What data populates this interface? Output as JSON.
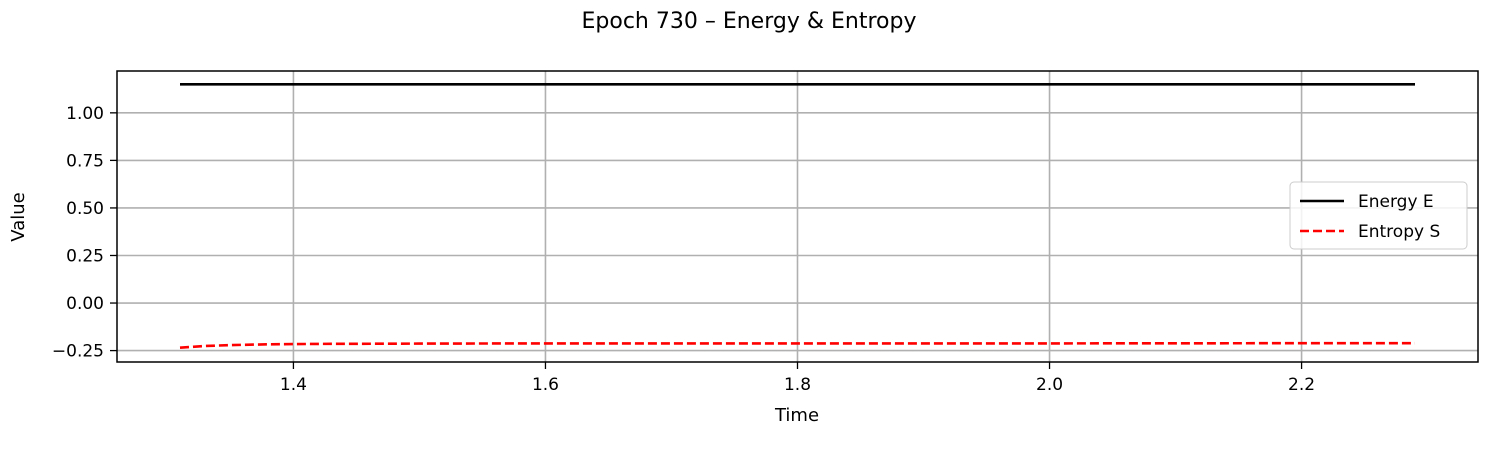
{
  "chart_data": {
    "type": "line",
    "title": "Epoch 730 – Energy & Entropy",
    "xlabel": "Time",
    "ylabel": "Value",
    "xlim": [
      1.26,
      2.34
    ],
    "ylim": [
      -0.31,
      1.22
    ],
    "xticks": [
      1.4,
      1.6,
      1.8,
      2.0,
      2.2
    ],
    "xtick_labels": [
      "1.4",
      "1.6",
      "1.8",
      "2.0",
      "2.2"
    ],
    "yticks": [
      -0.25,
      0.0,
      0.25,
      0.5,
      0.75,
      1.0
    ],
    "ytick_labels": [
      "−0.25",
      "0.00",
      "0.25",
      "0.50",
      "0.75",
      "1.00"
    ],
    "grid": true,
    "legend_position": "center-right",
    "series": [
      {
        "name": "Energy E",
        "color": "#000000",
        "style": "solid",
        "x": [
          1.31,
          1.4,
          1.5,
          1.6,
          1.7,
          1.8,
          1.9,
          2.0,
          2.1,
          2.2,
          2.29
        ],
        "y": [
          1.15,
          1.15,
          1.15,
          1.15,
          1.15,
          1.15,
          1.15,
          1.15,
          1.15,
          1.15,
          1.15
        ]
      },
      {
        "name": "Entropy S",
        "color": "#ff0000",
        "style": "dashed",
        "x": [
          1.31,
          1.33,
          1.35,
          1.38,
          1.42,
          1.5,
          1.6,
          1.8,
          2.0,
          2.2,
          2.29
        ],
        "y": [
          -0.235,
          -0.226,
          -0.221,
          -0.217,
          -0.215,
          -0.213,
          -0.212,
          -0.212,
          -0.212,
          -0.211,
          -0.211
        ]
      }
    ]
  }
}
